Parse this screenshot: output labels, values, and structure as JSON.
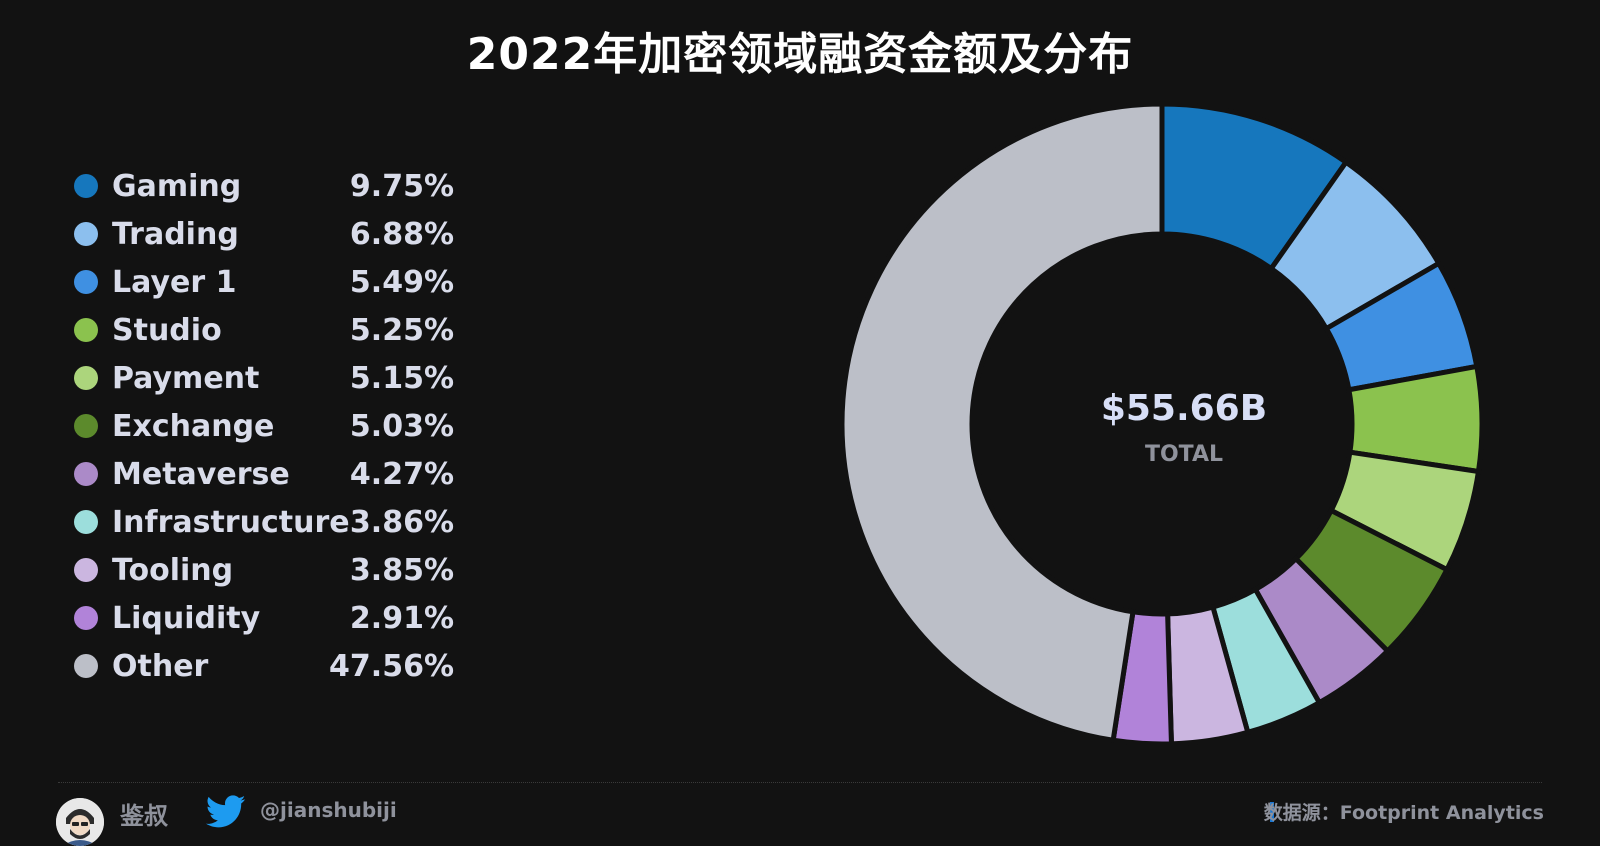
{
  "title": "2022年加密领域融资金额及分布",
  "chart_data": {
    "type": "pie",
    "title": "2022年加密领域融资金额及分布",
    "center_value": "$55.66B",
    "center_label": "TOTAL",
    "legend_position": "left",
    "slices": [
      {
        "label": "Gaming",
        "value": 9.75,
        "display": "9.75%",
        "color": "#1677bd"
      },
      {
        "label": "Trading",
        "value": 6.88,
        "display": "6.88%",
        "color": "#8cbfee"
      },
      {
        "label": "Layer 1",
        "value": 5.49,
        "display": "5.49%",
        "color": "#3f90e2"
      },
      {
        "label": "Studio",
        "value": 5.25,
        "display": "5.25%",
        "color": "#8bc24e"
      },
      {
        "label": "Payment",
        "value": 5.15,
        "display": "5.15%",
        "color": "#acd57c"
      },
      {
        "label": "Exchange",
        "value": 5.03,
        "display": "5.03%",
        "color": "#5c8a2c"
      },
      {
        "label": "Metaverse",
        "value": 4.27,
        "display": "4.27%",
        "color": "#ab8ac8"
      },
      {
        "label": "Infrastructure",
        "value": 3.86,
        "display": "3.86%",
        "color": "#9cdedc"
      },
      {
        "label": "Tooling",
        "value": 3.85,
        "display": "3.85%",
        "color": "#cbb6e0"
      },
      {
        "label": "Liquidity",
        "value": 2.91,
        "display": "2.91%",
        "color": "#b183d9"
      },
      {
        "label": "Other",
        "value": 47.56,
        "display": "47.56%",
        "color": "#bcbfc8"
      }
    ]
  },
  "footer": {
    "author": "鉴叔",
    "handle": "@jianshubiji",
    "source": "数据源：Footprint  Analytics",
    "avatar_icon": "avatar-portrait",
    "social_icon": "twitter-bird-icon",
    "accent_color": "#1976d2"
  }
}
